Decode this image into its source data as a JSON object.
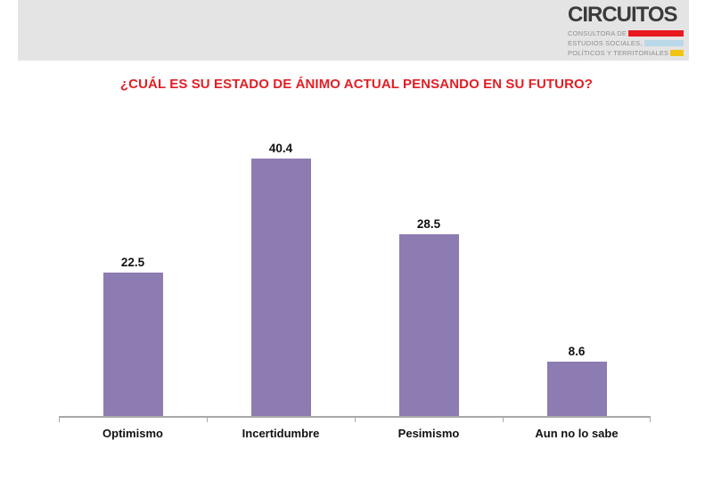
{
  "logo": {
    "name": "CIRCUITOS",
    "name_color": "#3b3b3b",
    "tagline_lines": [
      {
        "text": "CONSULTORA DE",
        "bar_color": "#e8191f"
      },
      {
        "text": "ESTUDIOS SOCIALES,",
        "bar_color": "#b9d8e8"
      },
      {
        "text": "POLÍTICOS Y TERRITORIALES",
        "bar_color": "#f2c412"
      }
    ]
  },
  "chart_data": {
    "type": "bar",
    "title": "¿CUÁL ES SU ESTADO DE ÁNIMO ACTUAL PENSANDO EN SU FUTURO?",
    "title_color": "#e31e24",
    "categories": [
      "Optimismo",
      "Incertidumbre",
      "Pesimismo",
      "Aun no lo sabe"
    ],
    "values": [
      22.5,
      40.4,
      28.5,
      8.6
    ],
    "bar_color": "#8d7cb1",
    "axis_color": "#a9a9a9",
    "xlabel": "",
    "ylabel": "",
    "ylim": [
      0,
      43.4
    ],
    "grid": false,
    "legend": false,
    "data_labels": true
  }
}
